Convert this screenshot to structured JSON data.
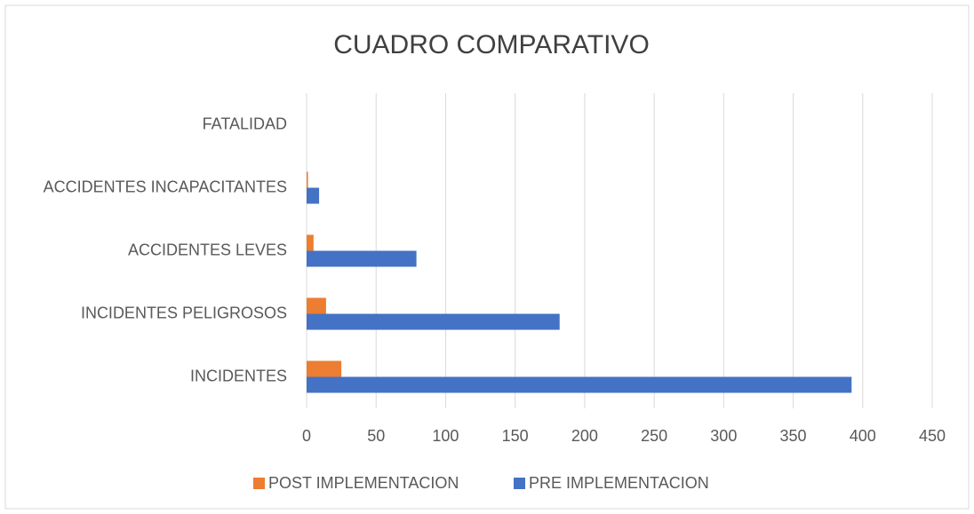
{
  "chart_data": {
    "type": "barh",
    "title": "CUADRO COMPARATIVO",
    "categories": [
      "FATALIDAD",
      "ACCIDENTES INCAPACITANTES",
      "ACCIDENTES LEVES",
      "INCIDENTES PELIGROSOS",
      "INCIDENTES"
    ],
    "series": [
      {
        "name": "POST IMPLEMENTACION",
        "color": "#ed7d31",
        "values": [
          0,
          1,
          5,
          14,
          25
        ]
      },
      {
        "name": "PRE IMPLEMENTACION",
        "color": "#4472c4",
        "values": [
          0,
          9,
          79,
          182,
          392
        ]
      }
    ],
    "xlim": [
      0,
      450
    ],
    "xticks": [
      0,
      50,
      100,
      150,
      200,
      250,
      300,
      350,
      400,
      450
    ],
    "grid": true,
    "legend": "bottom"
  }
}
